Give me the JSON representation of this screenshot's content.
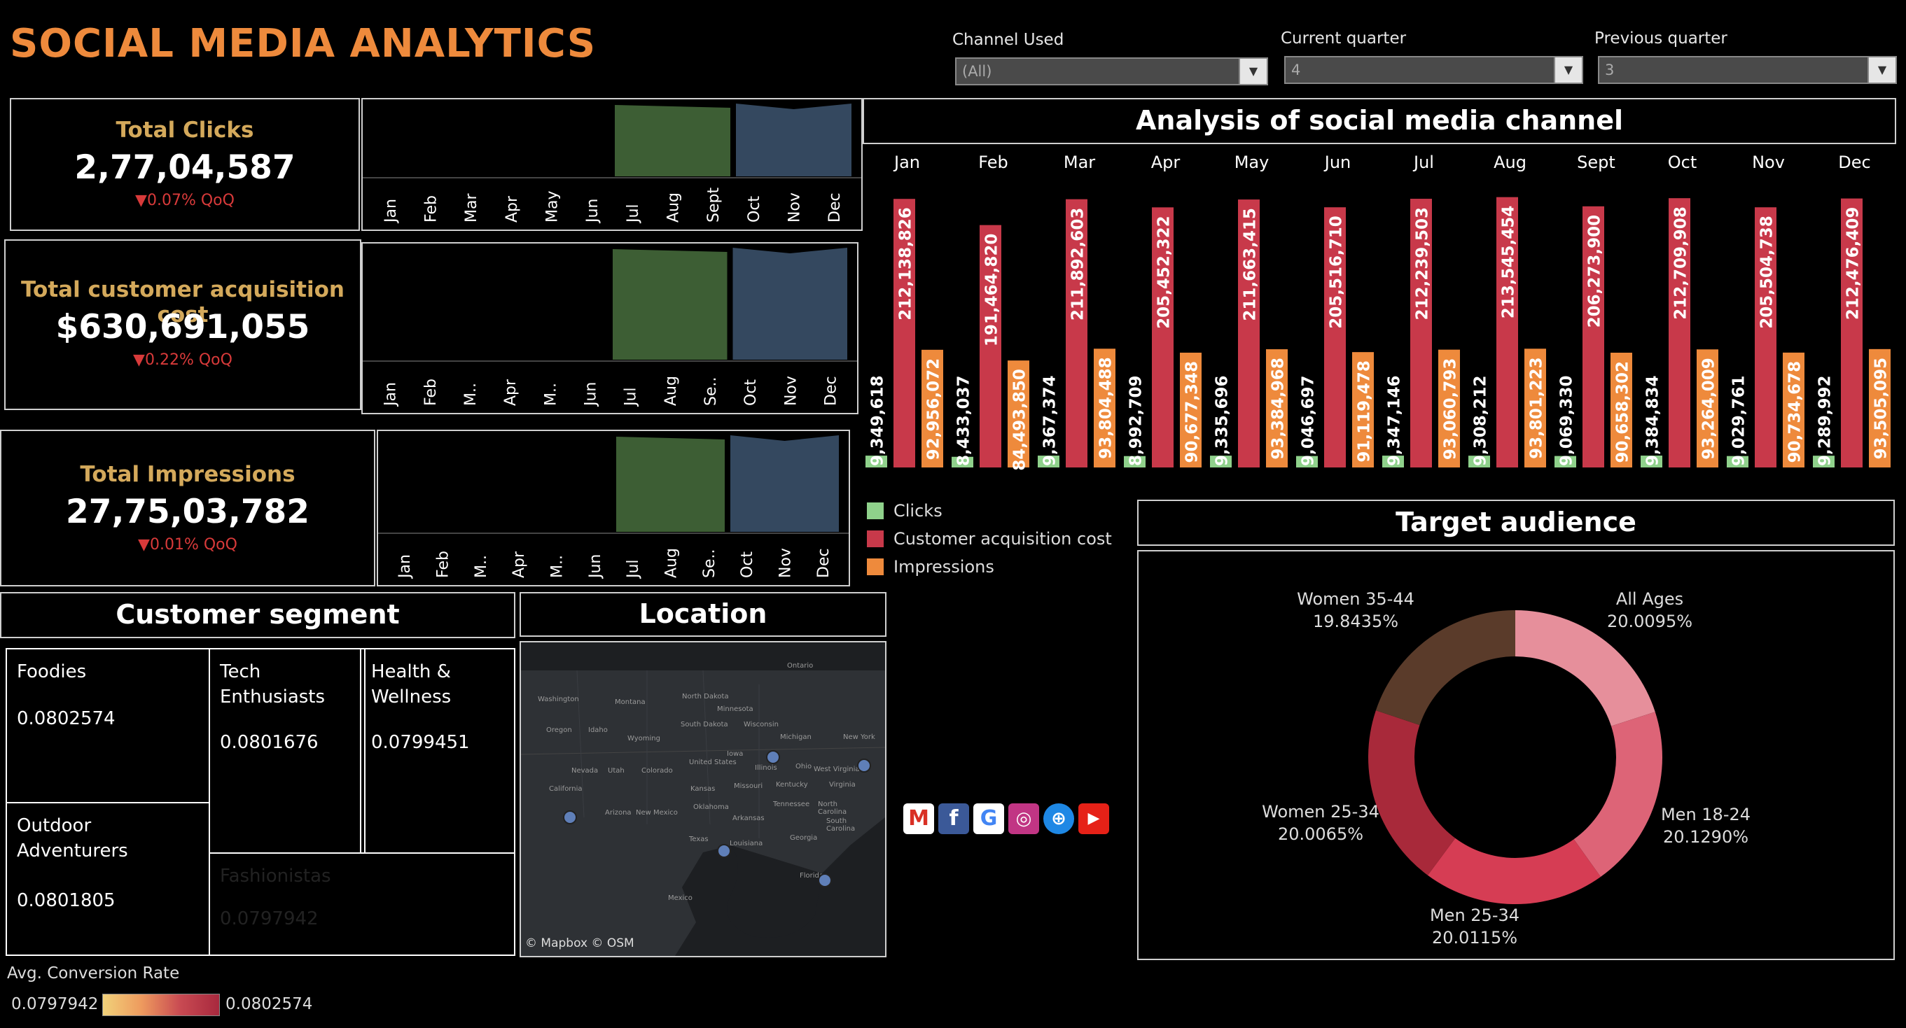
{
  "header": {
    "title": "SOCIAL MEDIA ANALYTICS"
  },
  "filters": [
    {
      "label": "Channel Used",
      "value": "(All)"
    },
    {
      "label": "Current quarter",
      "value": "4"
    },
    {
      "label": "Previous quarter",
      "value": "3"
    }
  ],
  "kpis": [
    {
      "label": "Total Clicks",
      "value": "2,77,04,587",
      "delta": "▼0.07% QoQ"
    },
    {
      "label": "Total customer acquisition cost",
      "value": "$630,691,055",
      "delta": "▼0.22% QoQ"
    },
    {
      "label": "Total Impressions",
      "value": "27,75,03,782",
      "delta": "▼0.01% QoQ"
    }
  ],
  "sparklines": [
    {
      "months": [
        "Jan",
        "Feb",
        "Mar",
        "Apr",
        "May",
        "Jun",
        "Jul",
        "Aug",
        "Sept",
        "Oct",
        "Nov",
        "Dec"
      ]
    },
    {
      "months": [
        "Jan",
        "Feb",
        "M..",
        "Apr",
        "M..",
        "Jun",
        "Jul",
        "Aug",
        "Se..",
        "Oct",
        "Nov",
        "Dec"
      ]
    },
    {
      "months": [
        "Jan",
        "Feb",
        "M..",
        "Apr",
        "M..",
        "Jun",
        "Jul",
        "Aug",
        "Se..",
        "Oct",
        "Nov",
        "Dec"
      ]
    }
  ],
  "colors": {
    "accent": "#ee8a3c",
    "clicks": "#8fd18b",
    "cac": "#c8394a",
    "impressions": "#ee8a3c",
    "q3_area": "#3d5e34",
    "q4_area": "#34485f"
  },
  "analysis": {
    "title": "Analysis of social media channel",
    "legend": [
      "Clicks",
      "Customer acquisition cost",
      "Impressions"
    ]
  },
  "chart_data": {
    "type": "bar",
    "categories": [
      "Jan",
      "Feb",
      "Mar",
      "Apr",
      "May",
      "Jun",
      "Jul",
      "Aug",
      "Sept",
      "Oct",
      "Nov",
      "Dec"
    ],
    "series": [
      {
        "name": "Clicks",
        "values": [
          9349618,
          8433037,
          9367374,
          8992709,
          9335696,
          9046697,
          9347146,
          9308212,
          9069330,
          9384834,
          9029761,
          9289992
        ],
        "labels": [
          "9,349,618",
          "8,433,037",
          "9,367,374",
          "8,992,709",
          "9,335,696",
          "9,046,697",
          "9,347,146",
          "9,308,212",
          "9,069,330",
          "9,384,834",
          "9,029,761",
          "9,289,992"
        ]
      },
      {
        "name": "Customer acquisition cost",
        "values": [
          212138826,
          191464820,
          211892603,
          205452322,
          211663415,
          205516710,
          212239503,
          213545454,
          206273900,
          212709908,
          205504738,
          212476409
        ],
        "labels": [
          "212,138,826",
          "191,464,820",
          "211,892,603",
          "205,452,322",
          "211,663,415",
          "205,516,710",
          "212,239,503",
          "213,545,454",
          "206,273,900",
          "212,709,908",
          "205,504,738",
          "212,476,409"
        ]
      },
      {
        "name": "Impressions",
        "values": [
          92956072,
          84493850,
          93804488,
          90677348,
          93384968,
          91119478,
          93060793,
          93801223,
          90658302,
          93264009,
          90734678,
          93505095
        ],
        "labels": [
          "92,956,072",
          "84,493,850",
          "93,804,488",
          "90,677,348",
          "93,384,968",
          "91,119,478",
          "93,060,793",
          "93,801,223",
          "90,658,302",
          "93,264,009",
          "90,734,678",
          "93,505,095"
        ]
      }
    ],
    "ylim": [
      0,
      220000000
    ]
  },
  "segment": {
    "title": "Customer segment",
    "cells": [
      {
        "name": "Foodies",
        "value": "0.0802574",
        "color": "#a8293e"
      },
      {
        "name": "Outdoor Adventurers",
        "value": "0.0801805",
        "color": "#b23342"
      },
      {
        "name": "Tech Enthusiasts",
        "value": "0.0801676",
        "color": "#b83a44"
      },
      {
        "name": "Health & Wellness",
        "value": "0.0799451",
        "color": "#ee9a5e"
      },
      {
        "name": "Fashionistas",
        "value": "0.0797942",
        "color": "#f1d27a"
      }
    ],
    "scale_label": "Avg. Conversion Rate",
    "scale_min": "0.0797942",
    "scale_max": "0.0802574"
  },
  "location": {
    "title": "Location",
    "credit": "© Mapbox © OSM",
    "places": [
      "Ontario",
      "Washington",
      "Montana",
      "North Dakota",
      "Minnesota",
      "Oregon",
      "Idaho",
      "South Dakota",
      "Wisconsin",
      "Michigan",
      "New York",
      "Wyoming",
      "Iowa",
      "Nevada",
      "Utah",
      "Colorado",
      "United States",
      "Illinois",
      "Ohio",
      "West Virginia",
      "California",
      "Kansas",
      "Missouri",
      "Kentucky",
      "Virginia",
      "Arizona",
      "New Mexico",
      "Oklahoma",
      "Tennessee",
      "North Carolina",
      "Arkansas",
      "South Carolina",
      "Texas",
      "Louisiana",
      "Georgia",
      "Florida",
      "Mexico"
    ]
  },
  "social_icons": [
    "gmail-icon",
    "facebook-icon",
    "google-icon",
    "instagram-icon",
    "web-icon",
    "youtube-icon"
  ],
  "audience": {
    "title": "Target audience",
    "slices": [
      {
        "label": "All Ages",
        "pct": "20.0095%",
        "value": 20.0095,
        "color": "#e68f9b"
      },
      {
        "label": "Men 18-24",
        "pct": "20.1290%",
        "value": 20.129,
        "color": "#dd6477"
      },
      {
        "label": "Men 25-34",
        "pct": "20.0115%",
        "value": 20.0115,
        "color": "#d63d54"
      },
      {
        "label": "Women 25-34",
        "pct": "20.0065%",
        "value": 20.0065,
        "color": "#a8293a"
      },
      {
        "label": "Women 35-44",
        "pct": "19.8435%",
        "value": 19.8435,
        "color": "#5a3b2a"
      }
    ]
  }
}
